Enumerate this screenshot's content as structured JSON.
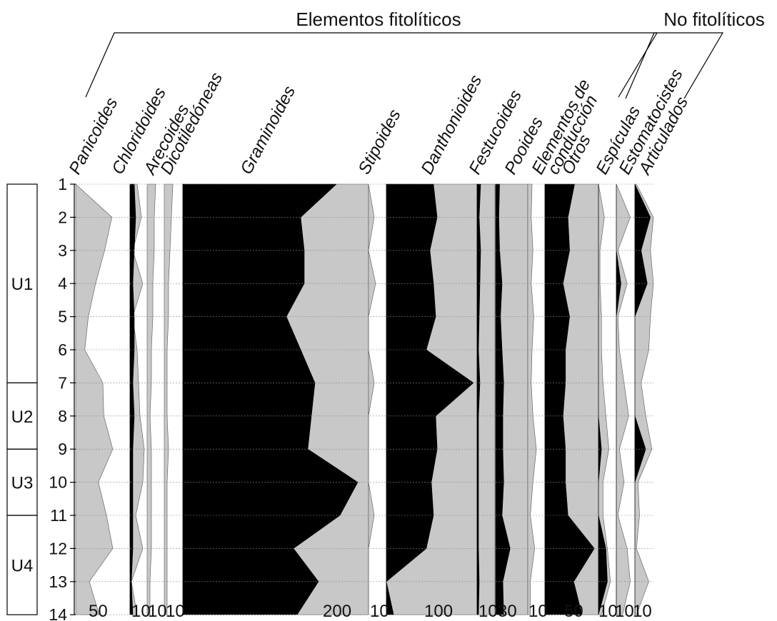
{
  "colors": {
    "total": "#c8c8c8",
    "inner": "#000000",
    "frame": "#000000",
    "grid": "#888888"
  },
  "groups": [
    {
      "key": "fito",
      "label": "Elementos fitolíticos"
    },
    {
      "key": "nofito",
      "label": "No fitolíticos"
    }
  ],
  "zones": [
    {
      "label": "U1",
      "from": 1,
      "to": 7
    },
    {
      "label": "U2",
      "from": 7,
      "to": 9
    },
    {
      "label": "U3",
      "from": 9,
      "to": 11
    },
    {
      "label": "U4",
      "from": 11,
      "to": 14
    }
  ],
  "chart_data": {
    "type": "area",
    "title": "",
    "samples": [
      1,
      2,
      3,
      4,
      5,
      6,
      7,
      8,
      9,
      10,
      11,
      12,
      13,
      14
    ],
    "series": [
      {
        "name": "Panicoides",
        "group": "fito",
        "max": 60,
        "scale_label": "50",
        "inner": [
          0,
          0,
          0,
          0,
          0,
          0,
          0,
          0,
          0,
          0,
          0,
          0,
          0,
          0
        ],
        "total": [
          0,
          40,
          32,
          22,
          14,
          10,
          30,
          31,
          41,
          25,
          34,
          41,
          15,
          26
        ]
      },
      {
        "name": "Chloridoides",
        "group": "fito",
        "max": 12,
        "scale_label": "10",
        "inner": [
          3,
          4,
          3,
          2,
          3,
          3,
          2,
          3,
          2,
          2,
          2,
          2,
          1,
          2
        ],
        "total": [
          5,
          8,
          2,
          9,
          2,
          5,
          6,
          7,
          10,
          9,
          4,
          9,
          1,
          5
        ]
      },
      {
        "name": "Arecoides",
        "group": "fito",
        "max": 12,
        "scale_label": "10",
        "inner": [
          0,
          0,
          0,
          0,
          0,
          0,
          0,
          0,
          0,
          0,
          0,
          0,
          0,
          0
        ],
        "total": [
          6,
          5,
          5,
          4,
          4,
          3,
          3,
          2,
          3,
          3,
          3,
          3,
          2,
          2
        ]
      },
      {
        "name": "Dicotiledóneas",
        "group": "fito",
        "max": 12,
        "scale_label": "10",
        "inner": [
          0,
          0,
          0,
          0,
          0,
          0,
          0,
          0,
          0,
          0,
          0,
          0,
          0,
          0
        ],
        "total": [
          6,
          5,
          4,
          3,
          3,
          2,
          2,
          2,
          3,
          2,
          2,
          2,
          2,
          2
        ]
      },
      {
        "name": "Graminoides",
        "group": "fito",
        "max": 260,
        "scale_label": "200",
        "inner": [
          215,
          165,
          170,
          170,
          145,
          165,
          185,
          180,
          175,
          245,
          220,
          155,
          190,
          160
        ],
        "total": [
          260,
          260,
          260,
          260,
          260,
          260,
          260,
          260,
          260,
          260,
          260,
          260,
          260,
          260
        ]
      },
      {
        "name": "Stipoides",
        "group": "fito",
        "max": 12,
        "scale_label": "10",
        "inner": [
          0,
          0,
          0,
          0,
          0,
          0,
          0,
          0,
          0,
          0,
          0,
          0,
          0,
          0
        ],
        "total": [
          0,
          4,
          0,
          5,
          0,
          0,
          4,
          0,
          0,
          0,
          4,
          0,
          0,
          0
        ]
      },
      {
        "name": "Danthonioides",
        "group": "fito",
        "max": 125,
        "scale_label": "100",
        "inner": [
          65,
          70,
          60,
          65,
          68,
          55,
          120,
          68,
          70,
          62,
          65,
          55,
          0,
          10
        ],
        "total": [
          125,
          125,
          125,
          125,
          125,
          125,
          125,
          125,
          125,
          125,
          125,
          125,
          125,
          125
        ]
      },
      {
        "name": "Festucoides",
        "group": "fito",
        "max": 25,
        "scale_label": "10",
        "inner": [
          5,
          3,
          5,
          4,
          3,
          2,
          4,
          2,
          2,
          2,
          2,
          2,
          3,
          2
        ],
        "total": [
          25,
          25,
          25,
          25,
          25,
          25,
          25,
          25,
          25,
          25,
          25,
          25,
          25,
          25
        ]
      },
      {
        "name": "Pooides",
        "group": "fito",
        "max": 40,
        "scale_label": "30",
        "inner": [
          5,
          4,
          5,
          8,
          6,
          8,
          10,
          9,
          9,
          10,
          8,
          18,
          9,
          10
        ],
        "total": [
          40,
          40,
          40,
          40,
          40,
          40,
          40,
          40,
          40,
          40,
          40,
          40,
          40,
          40
        ]
      },
      {
        "name": "Elementos de conducción",
        "group": "fito",
        "max": 20,
        "scale_label": "10",
        "inner": [
          0,
          0,
          0,
          0,
          0,
          0,
          0,
          0,
          0,
          0,
          0,
          0,
          0,
          0
        ],
        "total": [
          5,
          4,
          6,
          4,
          7,
          5,
          4,
          6,
          10,
          6,
          3,
          8,
          3,
          3
        ]
      },
      {
        "name": "Otros",
        "group": "fito",
        "max": 65,
        "scale_label": "50",
        "inner": [
          36,
          28,
          30,
          22,
          30,
          25,
          25,
          22,
          25,
          25,
          28,
          60,
          35,
          45
        ],
        "total": [
          65,
          65,
          65,
          65,
          65,
          65,
          65,
          65,
          65,
          65,
          65,
          65,
          65,
          65
        ]
      },
      {
        "name": "Espículas",
        "group": "nofito",
        "max": 12,
        "scale_label": "10",
        "inner": [
          0,
          0,
          0,
          0,
          0,
          0,
          0,
          0,
          2,
          0,
          0,
          5,
          6,
          0
        ],
        "total": [
          0,
          4,
          1,
          1,
          2,
          2,
          3,
          5,
          7,
          3,
          3,
          6,
          8,
          2
        ]
      },
      {
        "name": "Estomatocistes",
        "group": "nofito",
        "max": 12,
        "scale_label": "10",
        "inner": [
          0,
          0,
          0,
          3,
          0,
          0,
          0,
          0,
          0,
          0,
          0,
          0,
          0,
          0
        ],
        "total": [
          0,
          9,
          1,
          7,
          1,
          2,
          5,
          8,
          2,
          5,
          1,
          7,
          9,
          4
        ]
      },
      {
        "name": "Articulados",
        "group": "nofito",
        "max": 12,
        "scale_label": "10",
        "inner": [
          0,
          10,
          4,
          8,
          0,
          0,
          0,
          0,
          7,
          0,
          0,
          0,
          0,
          0
        ],
        "total": [
          1,
          12,
          10,
          12,
          10,
          9,
          4,
          7,
          11,
          2,
          3,
          1,
          9,
          1
        ]
      }
    ]
  }
}
